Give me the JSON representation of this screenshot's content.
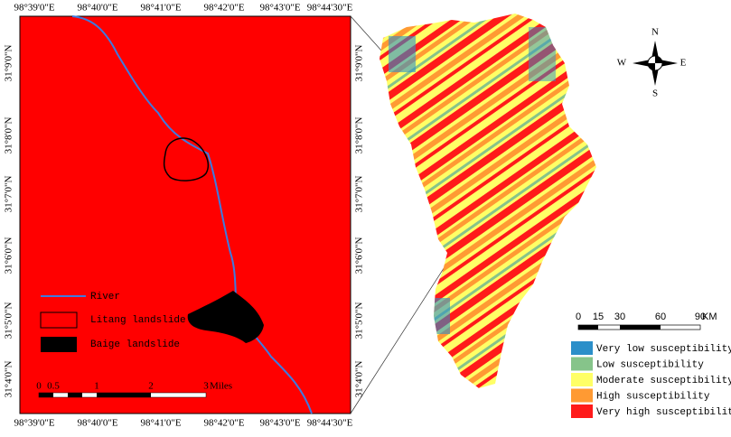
{
  "map": {
    "lon_labels": [
      "98°39'0\"E",
      "98°40'0\"E",
      "98°41'0\"E",
      "98°42'0\"E",
      "98°43'0\"E",
      "98°44'30\"E"
    ],
    "lat_labels": [
      "31°9'0\"N",
      "31°8'0\"N",
      "31°7'0\"N",
      "31°6'0\"N",
      "31°5'0\"N",
      "31°4'0\"N"
    ],
    "inset_legend": [
      "River",
      "Litang landslide",
      "Baige landslide"
    ],
    "scale_miles": [
      "0",
      "0.5",
      "1",
      "2",
      "3",
      "Miles"
    ],
    "compass": [
      "N",
      "S",
      "W",
      "E"
    ],
    "scale_km": [
      "0",
      "15",
      "30",
      "60",
      "90",
      "KM"
    ],
    "susceptibility_legend": [
      {
        "label": "Very low susceptibility",
        "color": "#2b8fc9"
      },
      {
        "label": "Low susceptibility",
        "color": "#86c48a"
      },
      {
        "label": "Moderate susceptibility",
        "color": "#ffff66"
      },
      {
        "label": "High susceptibility",
        "color": "#ff9a33"
      },
      {
        "label": "Very high susceptibility",
        "color": "#ff1a1a"
      }
    ]
  }
}
